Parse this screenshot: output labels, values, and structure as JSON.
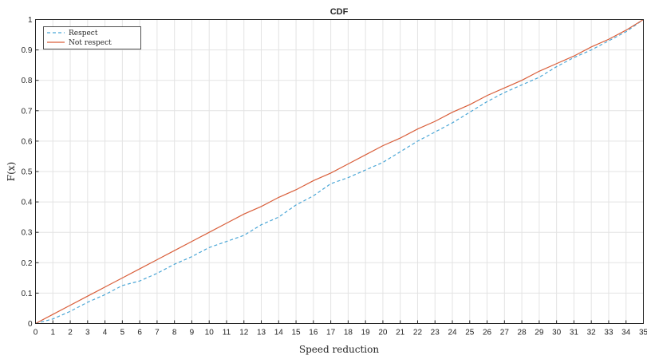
{
  "chart_data": {
    "type": "line",
    "title": "CDF",
    "xlabel": "Speed reduction",
    "ylabel": "F(x)",
    "xlim": [
      0,
      35
    ],
    "ylim": [
      0,
      1
    ],
    "xticks": [
      "0",
      "1",
      "2",
      "3",
      "4",
      "5",
      "6",
      "7",
      "8",
      "9",
      "10",
      "11",
      "12",
      "13",
      "14",
      "15",
      "16",
      "17",
      "18",
      "19",
      "20",
      "21",
      "22",
      "23",
      "24",
      "25",
      "26",
      "27",
      "28",
      "29",
      "30",
      "31",
      "32",
      "33",
      "34",
      "35"
    ],
    "yticks": [
      "0",
      "0.1",
      "0.2",
      "0.3",
      "0.4",
      "0.5",
      "0.6",
      "0.7",
      "0.8",
      "0.9",
      "1"
    ],
    "grid": true,
    "legend_position": "top-left",
    "series": [
      {
        "name": "Respect",
        "color": "#4aa6d6",
        "style": "dashed",
        "x": [
          0,
          1,
          2,
          3,
          4,
          5,
          6,
          7,
          8,
          9,
          10,
          11,
          12,
          13,
          14,
          15,
          16,
          17,
          18,
          19,
          20,
          21,
          22,
          23,
          24,
          25,
          26,
          27,
          28,
          29,
          30,
          31,
          32,
          33,
          34,
          35
        ],
        "y": [
          0,
          0.015,
          0.04,
          0.07,
          0.095,
          0.125,
          0.14,
          0.165,
          0.195,
          0.22,
          0.25,
          0.27,
          0.29,
          0.325,
          0.35,
          0.39,
          0.42,
          0.46,
          0.48,
          0.505,
          0.53,
          0.565,
          0.6,
          0.63,
          0.66,
          0.695,
          0.73,
          0.76,
          0.785,
          0.81,
          0.845,
          0.875,
          0.9,
          0.93,
          0.96,
          1.0
        ]
      },
      {
        "name": "Not respect",
        "color": "#d95f3b",
        "style": "solid",
        "x": [
          0,
          1,
          2,
          3,
          4,
          5,
          6,
          7,
          8,
          9,
          10,
          11,
          12,
          13,
          14,
          15,
          16,
          17,
          18,
          19,
          20,
          21,
          22,
          23,
          24,
          25,
          26,
          27,
          28,
          29,
          30,
          31,
          32,
          33,
          34,
          35
        ],
        "y": [
          0,
          0.03,
          0.06,
          0.09,
          0.12,
          0.15,
          0.18,
          0.21,
          0.24,
          0.27,
          0.3,
          0.33,
          0.36,
          0.385,
          0.415,
          0.44,
          0.47,
          0.495,
          0.525,
          0.555,
          0.585,
          0.61,
          0.64,
          0.665,
          0.695,
          0.72,
          0.75,
          0.775,
          0.8,
          0.83,
          0.855,
          0.88,
          0.91,
          0.935,
          0.965,
          1.0
        ]
      }
    ]
  }
}
